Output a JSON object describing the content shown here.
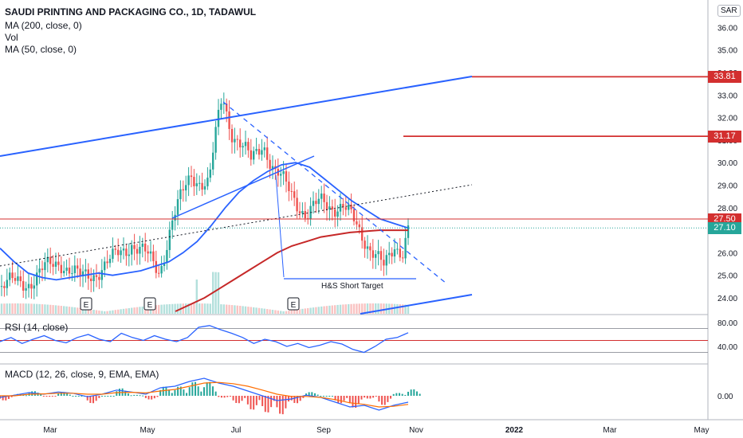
{
  "header": {
    "title": "SAUDI PRINTING AND PACKAGING CO., 1D, TADAWUL",
    "indicators": [
      "MA (200, close, 0)",
      "Vol",
      "MA (50, close, 0)"
    ],
    "currency": "SAR"
  },
  "rsi_label": "RSI (14, close)",
  "macd_label": "MACD (12, 26, close, 9, EMA, EMA)",
  "annotation": "H&S Short Target",
  "earnings_marker": "E",
  "colors": {
    "up": "#26a69a",
    "down": "#ef5350",
    "ma50": "#2962ff",
    "ma200": "#c62828",
    "trend": "#2962ff",
    "level": "#d32f2f"
  },
  "chart_data": [
    {
      "type": "candlestick",
      "title": "SAUDI PRINTING AND PACKAGING CO., 1D, TADAWUL",
      "y_ticks": [
        "24.00",
        "25.00",
        "26.00",
        "27.00",
        "28.00",
        "29.00",
        "30.00",
        "31.00",
        "32.00",
        "33.00",
        "34.00",
        "35.00",
        "36.00"
      ],
      "ylim": [
        23.4,
        36.5
      ],
      "x_ticks": [
        "Mar",
        "May",
        "Jul",
        "Sep",
        "Nov",
        "2022",
        "Mar",
        "May"
      ],
      "price_labels": [
        "33.81",
        "31.17",
        "27.50",
        "27.10"
      ],
      "levels": [
        33.81,
        31.17,
        27.5
      ],
      "last_price": 27.1,
      "series": [
        {
          "name": "MA (50, close, 0)",
          "values": [
            26.2,
            25.6,
            25.1,
            24.9,
            24.8,
            24.9,
            25.0,
            25.1,
            25.0,
            25.1,
            25.2,
            25.4,
            25.6,
            26.0,
            26.5,
            27.2,
            28.0,
            28.7,
            29.2,
            29.6,
            29.9,
            30.0,
            29.8,
            29.3,
            28.8,
            28.3,
            27.9,
            27.5,
            27.3,
            27.1
          ]
        },
        {
          "name": "MA (200, close, 0)",
          "values": [
            23.4,
            23.7,
            24.0,
            24.4,
            24.8,
            25.2,
            25.6,
            26.0,
            26.3,
            26.5,
            26.7,
            26.8,
            26.9,
            26.95,
            27.0,
            27.0,
            27.0
          ]
        }
      ]
    },
    {
      "type": "line",
      "title": "RSI (14, close)",
      "y_ticks": [
        "40.00",
        "80.00"
      ],
      "levels": [
        70,
        50,
        30
      ],
      "values": [
        48,
        55,
        45,
        52,
        58,
        50,
        46,
        55,
        60,
        52,
        48,
        62,
        55,
        50,
        58,
        52,
        48,
        55,
        72,
        75,
        68,
        62,
        55,
        45,
        52,
        48,
        40,
        45,
        38,
        42,
        48,
        44,
        35,
        30,
        40,
        52,
        55,
        63
      ]
    },
    {
      "type": "bar",
      "title": "MACD (12, 26, close, 9, EMA, EMA)",
      "y_ticks": [
        "0.00"
      ],
      "series": [
        {
          "name": "MACD",
          "values": [
            -0.05,
            0.02,
            0.1,
            0.05,
            0.12,
            0.08,
            -0.03,
            0.05,
            0.18,
            0.12,
            0.05,
            0.25,
            0.3,
            0.45,
            0.55,
            0.4,
            0.3,
            0.15,
            0.0,
            -0.15,
            -0.1,
            0.02,
            -0.05,
            -0.2,
            -0.35,
            -0.3,
            -0.45,
            -0.3,
            -0.2
          ]
        },
        {
          "name": "Signal",
          "values": [
            0.0,
            0.0,
            0.05,
            0.06,
            0.08,
            0.08,
            0.05,
            0.05,
            0.1,
            0.11,
            0.09,
            0.15,
            0.2,
            0.3,
            0.4,
            0.42,
            0.38,
            0.3,
            0.18,
            0.05,
            -0.02,
            -0.02,
            -0.05,
            -0.12,
            -0.22,
            -0.27,
            -0.35,
            -0.33,
            -0.27
          ]
        }
      ]
    }
  ]
}
